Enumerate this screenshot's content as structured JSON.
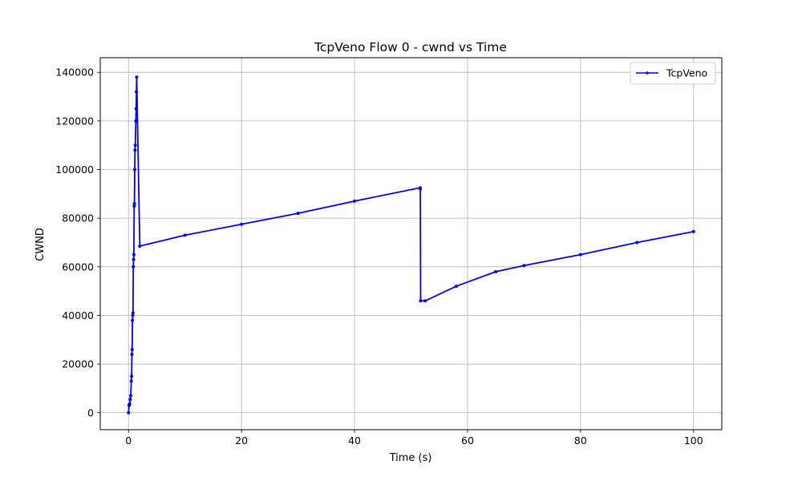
{
  "chart_data": {
    "type": "line",
    "title": "TcpVeno Flow 0 - cwnd vs Time",
    "xlabel": "Time (s)",
    "ylabel": "CWND",
    "xlim": [
      -5,
      105
    ],
    "ylim": [
      -7000,
      146000
    ],
    "xticks": [
      0,
      20,
      40,
      60,
      80,
      100
    ],
    "yticks": [
      0,
      20000,
      40000,
      60000,
      80000,
      100000,
      120000,
      140000
    ],
    "xtick_labels": [
      "0",
      "20",
      "40",
      "60",
      "80",
      "100"
    ],
    "ytick_labels": [
      "0",
      "20000",
      "40000",
      "60000",
      "80000",
      "100000",
      "120000",
      "140000"
    ],
    "grid": true,
    "legend_position": "top-right",
    "series": [
      {
        "name": "TcpVeno",
        "color": "#0000ff",
        "marker": "point",
        "x": [
          0.0,
          0.1,
          0.2,
          0.3,
          0.4,
          0.5,
          0.55,
          0.6,
          0.65,
          0.7,
          0.75,
          0.8,
          0.85,
          0.9,
          0.95,
          1.0,
          1.05,
          1.1,
          1.15,
          1.2,
          1.3,
          1.35,
          1.4,
          1.45,
          2.0,
          10.0,
          20.0,
          30.0,
          40.0,
          51.6,
          51.65,
          51.7,
          52.5,
          58.0,
          65.0,
          70.0,
          80.0,
          90.0,
          100.0
        ],
        "y": [
          0,
          3000,
          3500,
          5500,
          7000,
          13000,
          15000,
          24000,
          26000,
          38000,
          40000,
          41000,
          60000,
          63000,
          65000,
          85000,
          86000,
          100000,
          108000,
          110000,
          120000,
          125000,
          132000,
          138000,
          68500,
          73000,
          77500,
          82000,
          87000,
          92500,
          92000,
          46000,
          46000,
          52000,
          58000,
          60500,
          65000,
          70000,
          74500
        ]
      }
    ]
  }
}
